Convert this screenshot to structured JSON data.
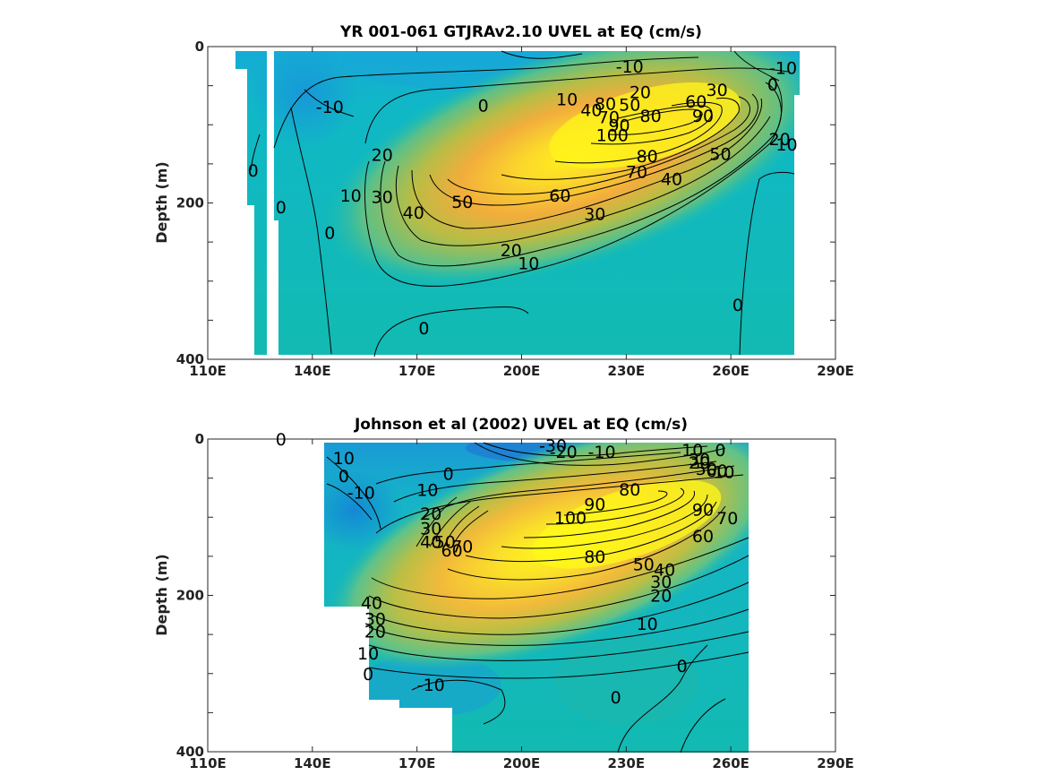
{
  "chart_data": [
    {
      "type": "contour",
      "title": "YR 001-061 GTJRAv2.10 UVEL at EQ (cm/s)",
      "ylabel": "Depth (m)",
      "xlabel": "",
      "x_ticks": [
        "110E",
        "140E",
        "170E",
        "200E",
        "230E",
        "260E",
        "290E"
      ],
      "y_ticks": [
        "0",
        "200",
        "400"
      ],
      "xlim": [
        110,
        290
      ],
      "ylim": [
        400,
        0
      ],
      "y_reversed": true,
      "colormap": "parula",
      "core": {
        "lon": 230,
        "depth": 110,
        "max_speed": 100
      },
      "data_extent": {
        "lon_min": 118,
        "lon_max": 280,
        "depth_max": 395
      },
      "contour_levels": [
        -10,
        0,
        10,
        20,
        30,
        40,
        50,
        60,
        70,
        80,
        90,
        100
      ],
      "contour_labels": [
        {
          "text": "-10",
          "lon": 231,
          "depth": 25
        },
        {
          "text": "-10",
          "lon": 275,
          "depth": 27
        },
        {
          "text": "-10",
          "lon": 145,
          "depth": 77
        },
        {
          "text": "0",
          "lon": 189,
          "depth": 75
        },
        {
          "text": "0",
          "lon": 272,
          "depth": 48
        },
        {
          "text": "0",
          "lon": 123,
          "depth": 158
        },
        {
          "text": "0",
          "lon": 131,
          "depth": 205
        },
        {
          "text": "0",
          "lon": 145,
          "depth": 238
        },
        {
          "text": "0",
          "lon": 172,
          "depth": 360
        },
        {
          "text": "0",
          "lon": 262,
          "depth": 330
        },
        {
          "text": "10",
          "lon": 213,
          "depth": 67
        },
        {
          "text": "10",
          "lon": 151,
          "depth": 190
        },
        {
          "text": "10",
          "lon": 202,
          "depth": 277
        },
        {
          "text": "10",
          "lon": 276,
          "depth": 125
        },
        {
          "text": "20",
          "lon": 234,
          "depth": 58
        },
        {
          "text": "20",
          "lon": 160,
          "depth": 138
        },
        {
          "text": "20",
          "lon": 197,
          "depth": 260
        },
        {
          "text": "20",
          "lon": 274,
          "depth": 118
        },
        {
          "text": "30",
          "lon": 256,
          "depth": 55
        },
        {
          "text": "30",
          "lon": 160,
          "depth": 192
        },
        {
          "text": "30",
          "lon": 221,
          "depth": 214
        },
        {
          "text": "40",
          "lon": 220,
          "depth": 81
        },
        {
          "text": "40",
          "lon": 169,
          "depth": 212
        },
        {
          "text": "40",
          "lon": 243,
          "depth": 169
        },
        {
          "text": "50",
          "lon": 231,
          "depth": 74
        },
        {
          "text": "50",
          "lon": 183,
          "depth": 198
        },
        {
          "text": "50",
          "lon": 257,
          "depth": 137
        },
        {
          "text": "60",
          "lon": 250,
          "depth": 70
        },
        {
          "text": "60",
          "lon": 211,
          "depth": 190
        },
        {
          "text": "70",
          "lon": 225,
          "depth": 90
        },
        {
          "text": "70",
          "lon": 233,
          "depth": 160
        },
        {
          "text": "80",
          "lon": 224,
          "depth": 73
        },
        {
          "text": "80",
          "lon": 237,
          "depth": 88
        },
        {
          "text": "80",
          "lon": 236,
          "depth": 140
        },
        {
          "text": "90",
          "lon": 228,
          "depth": 100
        },
        {
          "text": "90",
          "lon": 252,
          "depth": 88
        },
        {
          "text": "100",
          "lon": 226,
          "depth": 113
        }
      ]
    },
    {
      "type": "contour",
      "title": "Johnson et al (2002) UVEL at EQ (cm/s)",
      "ylabel": "Depth (m)",
      "xlabel": "",
      "x_ticks": [
        "110E",
        "140E",
        "170E",
        "200E",
        "230E",
        "260E",
        "290E"
      ],
      "y_ticks": [
        "0",
        "200",
        "400"
      ],
      "xlim": [
        110,
        290
      ],
      "ylim": [
        400,
        0
      ],
      "y_reversed": true,
      "colormap": "parula",
      "core": {
        "lon": 225,
        "depth": 110,
        "max_speed": 100
      },
      "data_extent": {
        "lon_min": 143,
        "lon_max": 265,
        "depth_max": 400
      },
      "contour_levels": [
        -30,
        -20,
        -10,
        0,
        10,
        20,
        30,
        40,
        50,
        60,
        70,
        80,
        90,
        100
      ],
      "contour_labels": [
        {
          "text": "-30",
          "lon": 209,
          "depth": 8
        },
        {
          "text": "-20",
          "lon": 212,
          "depth": 16
        },
        {
          "text": "-10",
          "lon": 223,
          "depth": 16
        },
        {
          "text": "-10",
          "lon": 154,
          "depth": 68
        },
        {
          "text": "-10",
          "lon": 174,
          "depth": 314
        },
        {
          "text": "0",
          "lon": 257,
          "depth": 14
        },
        {
          "text": "0",
          "lon": 149,
          "depth": 47
        },
        {
          "text": "0",
          "lon": 179,
          "depth": 44
        },
        {
          "text": "0",
          "lon": 131,
          "depth": 0
        },
        {
          "text": "0",
          "lon": 156,
          "depth": 300
        },
        {
          "text": "0",
          "lon": 227,
          "depth": 330
        },
        {
          "text": "0",
          "lon": 246,
          "depth": 290
        },
        {
          "text": "10",
          "lon": 149,
          "depth": 24
        },
        {
          "text": "10",
          "lon": 173,
          "depth": 65
        },
        {
          "text": "10",
          "lon": 249,
          "depth": 14
        },
        {
          "text": "10",
          "lon": 258,
          "depth": 42
        },
        {
          "text": "10",
          "lon": 156,
          "depth": 274
        },
        {
          "text": "10",
          "lon": 236,
          "depth": 236
        },
        {
          "text": "20",
          "lon": 174,
          "depth": 95
        },
        {
          "text": "20",
          "lon": 251,
          "depth": 30
        },
        {
          "text": "20",
          "lon": 158,
          "depth": 246
        },
        {
          "text": "20",
          "lon": 240,
          "depth": 200
        },
        {
          "text": "30",
          "lon": 174,
          "depth": 114
        },
        {
          "text": "30",
          "lon": 251,
          "depth": 26
        },
        {
          "text": "30",
          "lon": 158,
          "depth": 230
        },
        {
          "text": "30",
          "lon": 240,
          "depth": 182
        },
        {
          "text": "40",
          "lon": 174,
          "depth": 131
        },
        {
          "text": "40",
          "lon": 157,
          "depth": 209
        },
        {
          "text": "40",
          "lon": 241,
          "depth": 167
        },
        {
          "text": "50",
          "lon": 178,
          "depth": 131
        },
        {
          "text": "50",
          "lon": 253,
          "depth": 38
        },
        {
          "text": "50",
          "lon": 235,
          "depth": 160
        },
        {
          "text": "60",
          "lon": 180,
          "depth": 142
        },
        {
          "text": "60",
          "lon": 256,
          "depth": 40
        },
        {
          "text": "60",
          "lon": 252,
          "depth": 124
        },
        {
          "text": "70",
          "lon": 183,
          "depth": 137
        },
        {
          "text": "70",
          "lon": 259,
          "depth": 101
        },
        {
          "text": "80",
          "lon": 231,
          "depth": 64
        },
        {
          "text": "80",
          "lon": 221,
          "depth": 150
        },
        {
          "text": "90",
          "lon": 221,
          "depth": 83
        },
        {
          "text": "90",
          "lon": 252,
          "depth": 90
        },
        {
          "text": "100",
          "lon": 214,
          "depth": 100
        }
      ]
    }
  ]
}
